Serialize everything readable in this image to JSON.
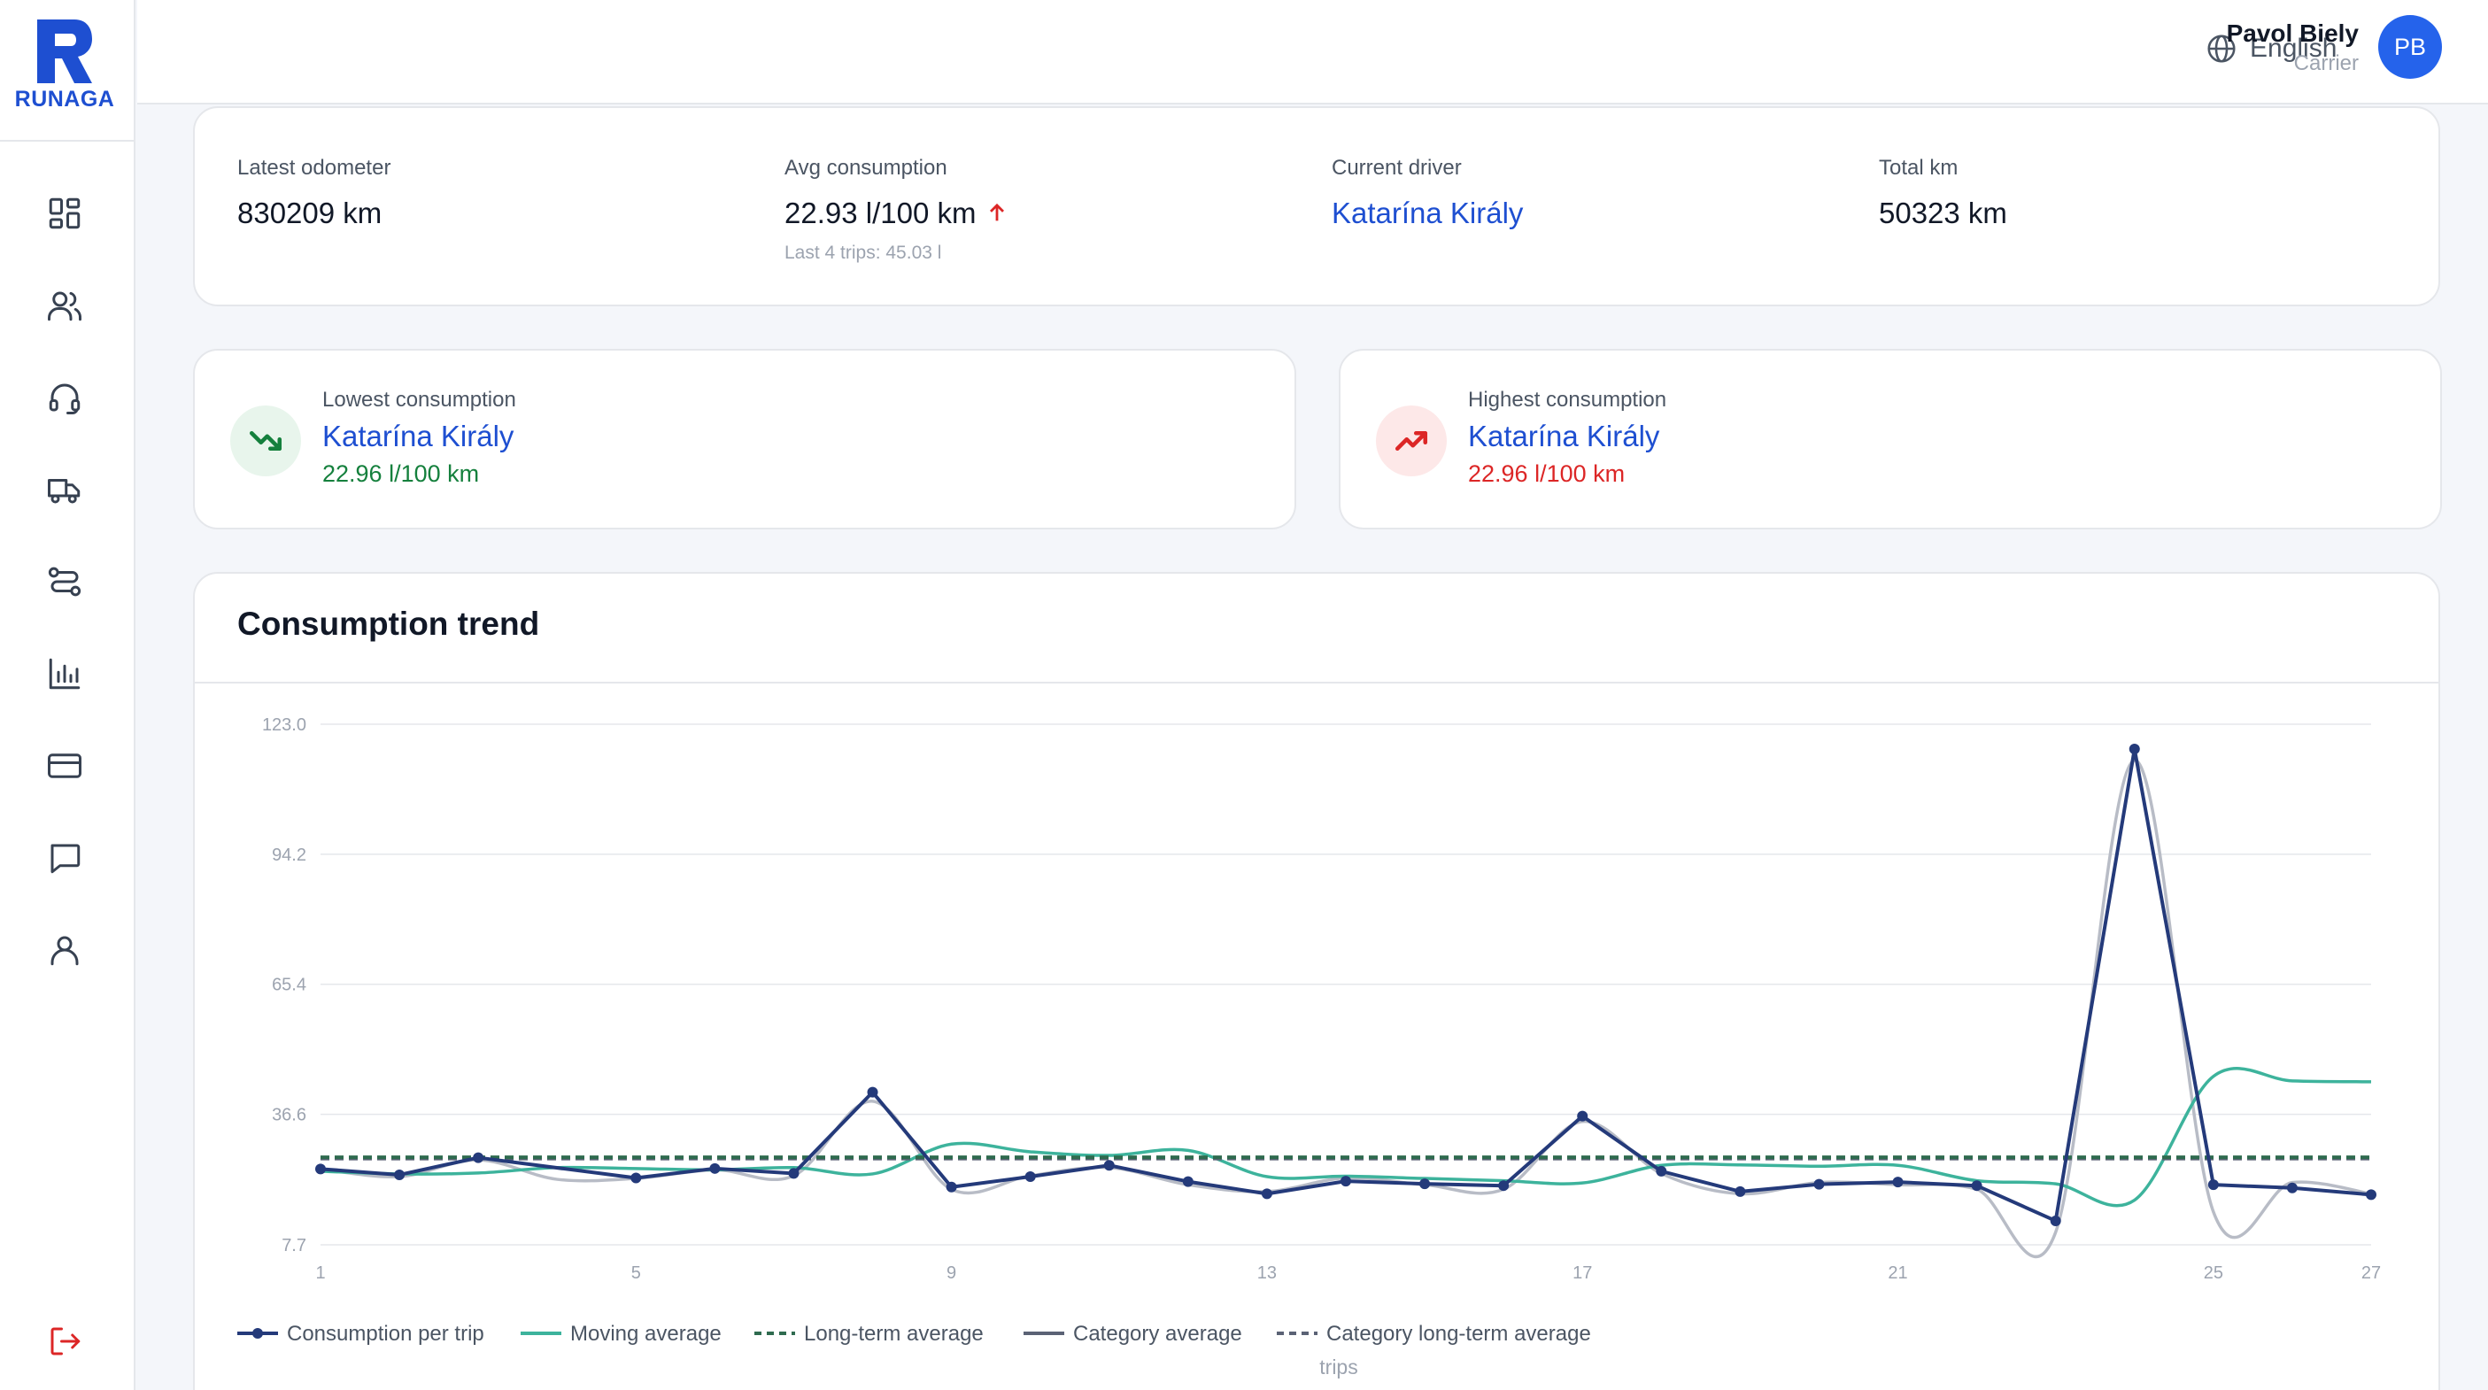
{
  "brand": {
    "name": "RUNAGA",
    "color": "#1e4fd1"
  },
  "nav": [
    {
      "name": "dashboard-icon"
    },
    {
      "name": "users-icon"
    },
    {
      "name": "headset-icon"
    },
    {
      "name": "truck-icon"
    },
    {
      "name": "route-icon"
    },
    {
      "name": "bar-chart-icon"
    },
    {
      "name": "credit-card-icon"
    },
    {
      "name": "message-icon"
    },
    {
      "name": "profile-icon"
    }
  ],
  "logout": {
    "icon": "logout-icon",
    "color": "#dc2626"
  },
  "header": {
    "language": "English",
    "user_name": "Pavol Biely",
    "user_role": "Carrier",
    "avatar_initials": "PB"
  },
  "stats": {
    "latest_odometer": {
      "label": "Latest odometer",
      "value": "830209 km"
    },
    "avg_consumption": {
      "label": "Avg consumption",
      "value": "22.93 l/100 km",
      "sub": "Last 4 trips: 45.03 l",
      "trend": "up"
    },
    "current_driver": {
      "label": "Current driver",
      "value": "Katarína Király"
    },
    "total_km": {
      "label": "Total km",
      "value": "50323 km"
    }
  },
  "lowest": {
    "label": "Lowest consumption",
    "name": "Katarína Király",
    "value": "22.96 l/100 km",
    "color": "#15803d",
    "bg": "#e8f5ec",
    "icon": "trending-down-icon"
  },
  "highest": {
    "label": "Highest consumption",
    "name": "Katarína Király",
    "value": "22.96 l/100 km",
    "color": "#dc2626",
    "bg": "#fde8e8",
    "icon": "trending-up-icon"
  },
  "chart_data": {
    "type": "line",
    "title": "Consumption trend",
    "xlabel": "trips",
    "ylabel": "",
    "ylim": [
      7.7,
      123.0
    ],
    "yticks": [
      "7.7",
      "36.6",
      "65.4",
      "94.2",
      "123.0"
    ],
    "xticks": [
      "1",
      "5",
      "9",
      "13",
      "17",
      "21",
      "25",
      "27"
    ],
    "x": [
      1,
      2,
      3,
      4,
      5,
      6,
      7,
      8,
      9,
      10,
      11,
      12,
      13,
      14,
      15,
      16,
      17,
      18,
      19,
      20,
      21,
      22,
      23,
      24,
      25,
      26,
      27
    ],
    "grid": true,
    "legend_position": "bottom",
    "series": [
      {
        "name": "Consumption per trip",
        "color": "#243a7a",
        "style": "line-markers",
        "values": [
          24.5,
          23.2,
          27.0,
          null,
          22.5,
          24.6,
          23.5,
          41.5,
          20.5,
          22.8,
          25.3,
          21.7,
          19.0,
          21.8,
          21.2,
          20.8,
          36.2,
          24.0,
          19.5,
          21.1,
          21.6,
          20.8,
          13.0,
          117.5,
          21.0,
          20.3,
          18.8
        ]
      },
      {
        "name": "Moving average",
        "color": "#3db39c",
        "style": "smooth",
        "values": [
          24.0,
          23.4,
          23.6,
          24.8,
          24.6,
          24.3,
          24.8,
          23.4,
          30.0,
          28.3,
          27.5,
          28.6,
          22.8,
          22.9,
          22.4,
          21.9,
          21.4,
          25.3,
          25.4,
          25.1,
          25.3,
          21.9,
          21.2,
          17.6,
          45.0,
          44.0,
          43.8
        ]
      },
      {
        "name": "Long-term average",
        "color": "#2f6b4f",
        "style": "dashed",
        "values": [
          27.1,
          27.1,
          27.1,
          27.1,
          27.1,
          27.1,
          27.1,
          27.1,
          27.1,
          27.1,
          27.1,
          27.1,
          27.1,
          27.1,
          27.1,
          27.1,
          27.1,
          27.1,
          27.1,
          27.1,
          27.1,
          27.1,
          27.1,
          27.1,
          27.1,
          27.1,
          27.1
        ]
      },
      {
        "name": "Category average",
        "color": "#b8bcc6",
        "style": "smooth",
        "values": [
          24.5,
          22.8,
          26.5,
          22.2,
          22.4,
          24.3,
          23.0,
          39.5,
          20.0,
          23.0,
          24.8,
          21.0,
          19.5,
          22.5,
          21.0,
          20.0,
          35.0,
          23.5,
          19.0,
          21.5,
          21.0,
          20.0,
          10.5,
          115.0,
          15.0,
          21.5,
          19.0
        ]
      },
      {
        "name": "Category long-term average",
        "color": "#5b6275",
        "style": "dashed",
        "values": [
          26.8,
          26.8,
          26.8,
          26.8,
          26.8,
          26.8,
          26.8,
          26.8,
          26.8,
          26.8,
          26.8,
          26.8,
          26.8,
          26.8,
          26.8,
          26.8,
          26.8,
          26.8,
          26.8,
          26.8,
          26.8,
          26.8,
          26.8,
          26.8,
          26.8,
          26.8,
          26.8
        ]
      }
    ]
  }
}
